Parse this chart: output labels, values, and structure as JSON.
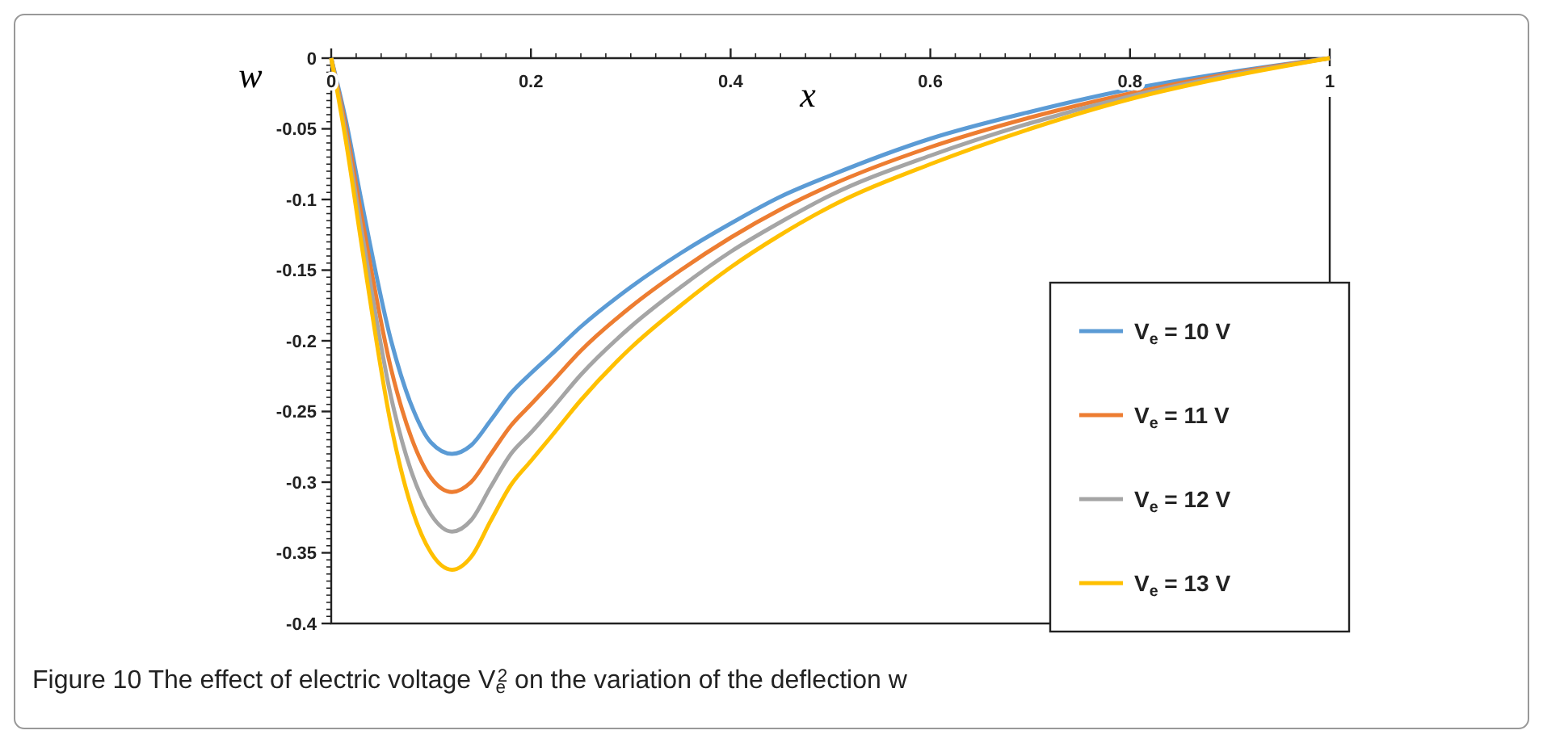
{
  "chart_data": {
    "type": "line",
    "title": "Figure 10  The effect of electric voltage V$_{e}$$^{2}$ on the variation of the deflection w",
    "xlabel": "x",
    "ylabel": "w",
    "x": [
      0,
      0.015,
      0.03,
      0.06,
      0.08,
      0.1,
      0.121,
      0.14,
      0.16,
      0.18,
      0.2,
      0.22,
      0.25,
      0.3,
      0.35,
      0.4,
      0.45,
      0.5,
      0.6,
      0.7,
      0.8,
      0.9,
      1
    ],
    "series": [
      {
        "name": "V$_{e}$ = 10 V",
        "color": "#5b9bd5",
        "values": [
          0,
          -0.045,
          -0.1,
          -0.2,
          -0.245,
          -0.272,
          -0.28,
          -0.274,
          -0.256,
          -0.237,
          -0.223,
          -0.21,
          -0.19,
          -0.162,
          -0.138,
          -0.117,
          -0.098,
          -0.083,
          -0.057,
          -0.038,
          -0.022,
          -0.01,
          0
        ]
      },
      {
        "name": "V$_{e}$ = 11 V",
        "color": "#ed7d31",
        "values": [
          0,
          -0.05,
          -0.11,
          -0.22,
          -0.268,
          -0.297,
          -0.307,
          -0.3,
          -0.28,
          -0.26,
          -0.245,
          -0.23,
          -0.207,
          -0.176,
          -0.15,
          -0.127,
          -0.107,
          -0.09,
          -0.063,
          -0.042,
          -0.025,
          -0.011,
          0
        ]
      },
      {
        "name": "V$_{e}$ = 12 V",
        "color": "#a5a5a5",
        "values": [
          0,
          -0.055,
          -0.12,
          -0.24,
          -0.292,
          -0.323,
          -0.335,
          -0.327,
          -0.303,
          -0.28,
          -0.265,
          -0.249,
          -0.224,
          -0.19,
          -0.162,
          -0.137,
          -0.116,
          -0.097,
          -0.069,
          -0.046,
          -0.027,
          -0.012,
          0
        ]
      },
      {
        "name": "V$_{e}$ = 13 V",
        "color": "#ffc000",
        "values": [
          0,
          -0.06,
          -0.13,
          -0.26,
          -0.317,
          -0.35,
          -0.362,
          -0.353,
          -0.327,
          -0.302,
          -0.285,
          -0.268,
          -0.242,
          -0.205,
          -0.175,
          -0.148,
          -0.125,
          -0.105,
          -0.075,
          -0.05,
          -0.029,
          -0.013,
          0
        ]
      }
    ],
    "xlim": [
      0,
      1
    ],
    "xticks": [
      0,
      0.2,
      0.4,
      0.6,
      0.8,
      1
    ],
    "ylim": [
      -0.4,
      0
    ],
    "yticks": [
      0,
      -0.05,
      -0.1,
      -0.15,
      -0.2,
      -0.25,
      -0.3,
      -0.35,
      -0.4
    ],
    "grid": false,
    "legend": "bottom right",
    "marker": "none",
    "line_style": "solid"
  }
}
